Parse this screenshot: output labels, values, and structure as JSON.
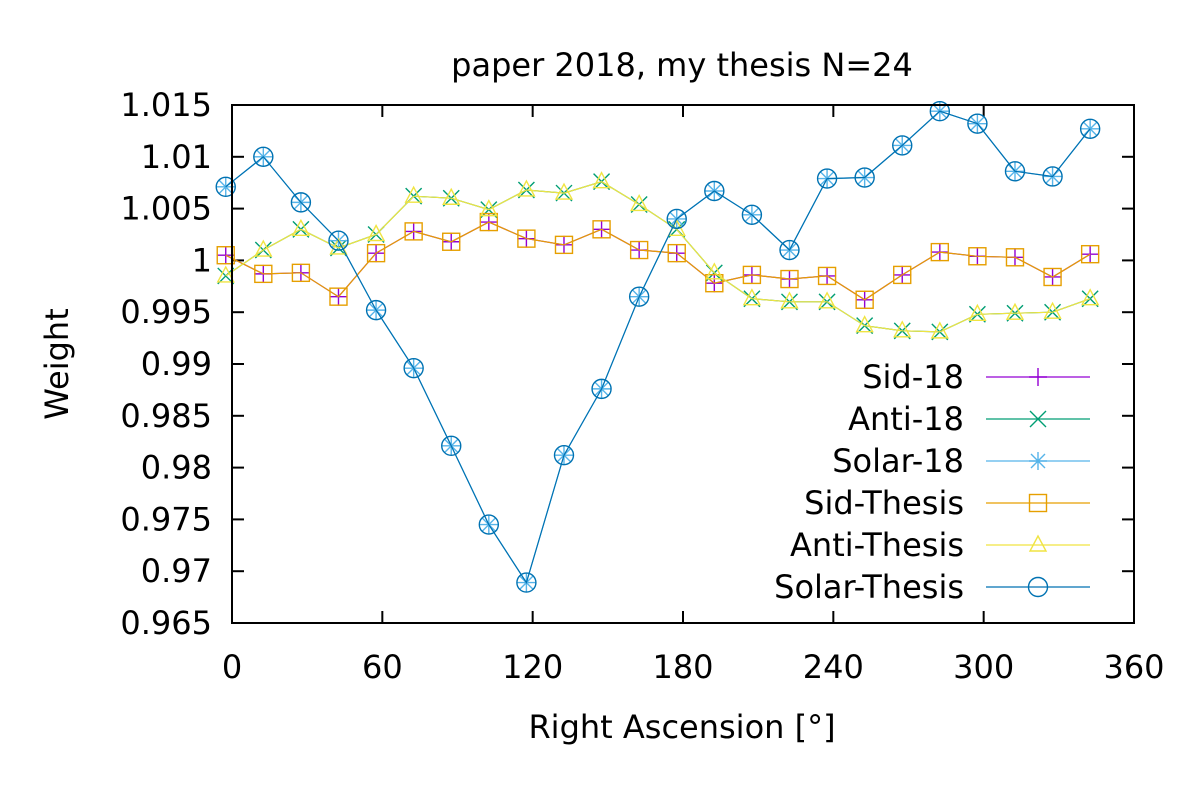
{
  "chart_data": {
    "type": "line",
    "title": "paper 2018, my thesis N=24",
    "xlabel": "Right Ascension [°]",
    "ylabel": "Weight",
    "xlim": [
      0,
      360
    ],
    "ylim": [
      0.965,
      1.015
    ],
    "xticks": [
      0,
      60,
      120,
      180,
      240,
      300,
      360
    ],
    "yticks": [
      0.965,
      0.97,
      0.975,
      0.98,
      0.985,
      0.99,
      0.995,
      1.0,
      1.005,
      1.01,
      1.015
    ],
    "ytick_labels": [
      "0.965",
      "0.97",
      "0.975",
      "0.98",
      "0.985",
      "0.99",
      "0.995",
      "1",
      "1.005",
      "1.01",
      "1.015"
    ],
    "grid": false,
    "legend_position": "right",
    "x": [
      -2.5,
      12.5,
      27.5,
      42.5,
      57.5,
      72.5,
      87.5,
      102.5,
      117.5,
      132.5,
      147.5,
      162.5,
      177.5,
      192.5,
      207.5,
      222.5,
      237.5,
      252.5,
      267.5,
      282.5,
      297.5,
      312.5,
      327.5,
      342.5
    ],
    "series": [
      {
        "name": "Sid-18",
        "marker": "plus",
        "color": "#9400d3",
        "values": [
          1.0005,
          0.9987,
          0.9988,
          0.9965,
          1.0007,
          1.0028,
          1.0018,
          1.0037,
          1.0021,
          1.0015,
          1.003,
          1.001,
          1.0007,
          0.9978,
          0.9986,
          0.9982,
          0.9985,
          0.9962,
          0.9986,
          1.0008,
          1.0004,
          1.0003,
          0.9984,
          1.0006
        ]
      },
      {
        "name": "Anti-18",
        "marker": "cross",
        "color": "#009e73",
        "values": [
          0.9985,
          1.001,
          1.003,
          1.0012,
          1.0025,
          1.0062,
          1.006,
          1.0049,
          1.0068,
          1.0065,
          1.0076,
          1.0054,
          1.003,
          0.9988,
          0.9963,
          0.996,
          0.996,
          0.9937,
          0.9932,
          0.9931,
          0.9948,
          0.9949,
          0.995,
          0.9963
        ]
      },
      {
        "name": "Solar-18",
        "marker": "asterisk",
        "color": "#56b4e9",
        "values": [
          1.0071,
          1.01,
          1.0056,
          1.0019,
          0.9952,
          0.9896,
          0.9821,
          0.9745,
          0.9689,
          0.9812,
          0.9876,
          0.9965,
          1.004,
          1.0067,
          1.0044,
          1.001,
          1.0079,
          1.008,
          1.0111,
          1.0144,
          1.0132,
          1.0086,
          1.0081,
          1.0127
        ]
      },
      {
        "name": "Sid-Thesis",
        "marker": "square",
        "color": "#e69f00",
        "values": [
          1.0005,
          0.9987,
          0.9988,
          0.9965,
          1.0007,
          1.0028,
          1.0018,
          1.0037,
          1.0021,
          1.0015,
          1.003,
          1.001,
          1.0007,
          0.9978,
          0.9986,
          0.9982,
          0.9985,
          0.9962,
          0.9986,
          1.0008,
          1.0004,
          1.0003,
          0.9984,
          1.0006
        ]
      },
      {
        "name": "Anti-Thesis",
        "marker": "triangle",
        "color": "#f0e442",
        "values": [
          0.9985,
          1.001,
          1.003,
          1.0012,
          1.0025,
          1.0062,
          1.006,
          1.0049,
          1.0068,
          1.0065,
          1.0076,
          1.0054,
          1.003,
          0.9988,
          0.9963,
          0.996,
          0.996,
          0.9937,
          0.9932,
          0.9931,
          0.9948,
          0.9949,
          0.995,
          0.9963
        ]
      },
      {
        "name": "Solar-Thesis",
        "marker": "circle",
        "color": "#0072b2",
        "values": [
          1.0071,
          1.01,
          1.0056,
          1.0019,
          0.9952,
          0.9896,
          0.9821,
          0.9745,
          0.9689,
          0.9812,
          0.9876,
          0.9965,
          1.004,
          1.0067,
          1.0044,
          1.001,
          1.0079,
          1.008,
          1.0111,
          1.0144,
          1.0132,
          1.0086,
          1.0081,
          1.0127
        ]
      }
    ]
  }
}
